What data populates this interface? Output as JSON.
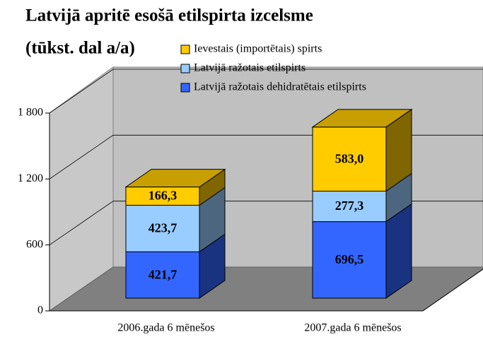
{
  "chart_data": {
    "type": "bar3d_stacked",
    "title": [
      "Latvijā apritē esošā etilspirta izcelsme",
      "(tūkst. dal a/a)"
    ],
    "categories": [
      "2006.gada 6 mēnešos",
      "2007.gada 6 mēnešos"
    ],
    "series": [
      {
        "name": "Latvijā ražotais dehidratētais etilspirts",
        "color": "#3366ff",
        "values": [
          421.7,
          696.5
        ],
        "value_labels": [
          "421,7",
          "696,5"
        ]
      },
      {
        "name": "Latvijā ražotais etilspirts",
        "color": "#99ccff",
        "values": [
          423.7,
          277.3
        ],
        "value_labels": [
          "423,7",
          "277,3"
        ]
      },
      {
        "name": "Ievestais (importētais) spirts",
        "color": "#ffcc00",
        "values": [
          166.3,
          583.0
        ],
        "value_labels": [
          "166,3",
          "583,0"
        ]
      }
    ],
    "ylim": [
      0,
      1800
    ],
    "yticks": [
      0,
      600,
      {
        "value": 1200,
        "label": "1 200"
      },
      {
        "value": 1800,
        "label": "1 800"
      }
    ],
    "grid": true,
    "legend": "top-right"
  }
}
